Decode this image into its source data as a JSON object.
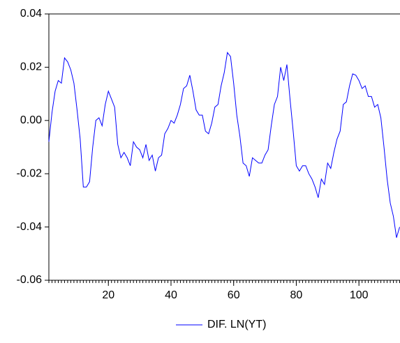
{
  "chart_data": {
    "type": "line",
    "x": [
      1,
      2,
      3,
      4,
      5,
      6,
      7,
      8,
      9,
      10,
      11,
      12,
      13,
      14,
      15,
      16,
      17,
      18,
      19,
      20,
      21,
      22,
      23,
      24,
      25,
      26,
      27,
      28,
      29,
      30,
      31,
      32,
      33,
      34,
      35,
      36,
      37,
      38,
      39,
      40,
      41,
      42,
      43,
      44,
      45,
      46,
      47,
      48,
      49,
      50,
      51,
      52,
      53,
      54,
      55,
      56,
      57,
      58,
      59,
      60,
      61,
      62,
      63,
      64,
      65,
      66,
      67,
      68,
      69,
      70,
      71,
      72,
      73,
      74,
      75,
      76,
      77,
      78,
      79,
      80,
      81,
      82,
      83,
      84,
      85,
      86,
      87,
      88,
      89,
      90,
      91,
      92,
      93,
      94,
      95,
      96,
      97,
      98,
      99,
      100,
      101,
      102,
      103,
      104,
      105,
      106,
      107,
      108,
      109,
      110,
      111,
      112,
      113
    ],
    "series": [
      {
        "name": "DIF. LN(YT)",
        "color": "#0000ff",
        "values": [
          -0.008,
          0.003,
          0.011,
          0.015,
          0.014,
          0.0235,
          0.022,
          0.019,
          0.014,
          0.004,
          -0.007,
          -0.025,
          -0.025,
          -0.023,
          -0.01,
          0.0,
          0.001,
          -0.002,
          0.006,
          0.011,
          0.008,
          0.005,
          -0.009,
          -0.014,
          -0.012,
          -0.014,
          -0.017,
          -0.008,
          -0.01,
          -0.011,
          -0.014,
          -0.009,
          -0.015,
          -0.013,
          -0.019,
          -0.014,
          -0.013,
          -0.005,
          -0.003,
          0.0,
          -0.001,
          0.002,
          0.006,
          0.012,
          0.013,
          0.017,
          0.011,
          0.004,
          0.002,
          0.002,
          -0.004,
          -0.005,
          -0.001,
          0.005,
          0.006,
          0.013,
          0.018,
          0.0255,
          0.024,
          0.014,
          0.002,
          -0.006,
          -0.016,
          -0.017,
          -0.021,
          -0.014,
          -0.015,
          -0.016,
          -0.016,
          -0.013,
          -0.011,
          -0.002,
          0.006,
          0.009,
          0.02,
          0.015,
          0.021,
          0.008,
          -0.004,
          -0.017,
          -0.019,
          -0.017,
          -0.017,
          -0.02,
          -0.022,
          -0.025,
          -0.029,
          -0.022,
          -0.024,
          -0.016,
          -0.018,
          -0.012,
          -0.007,
          -0.004,
          0.006,
          0.007,
          0.013,
          0.0175,
          0.017,
          0.015,
          0.012,
          0.013,
          0.009,
          0.009,
          0.005,
          0.006,
          0.001,
          -0.01,
          -0.022,
          -0.031,
          -0.036,
          -0.044,
          -0.04
        ]
      }
    ],
    "xlim": [
      1,
      113
    ],
    "xticks": [
      20,
      40,
      60,
      80,
      100
    ],
    "ylim": [
      -0.06,
      0.04
    ],
    "yticks": [
      -0.06,
      -0.04,
      -0.02,
      {
        "value": 0,
        "label": "0.00"
      },
      0.02,
      0.04
    ],
    "legend": "bottom"
  }
}
